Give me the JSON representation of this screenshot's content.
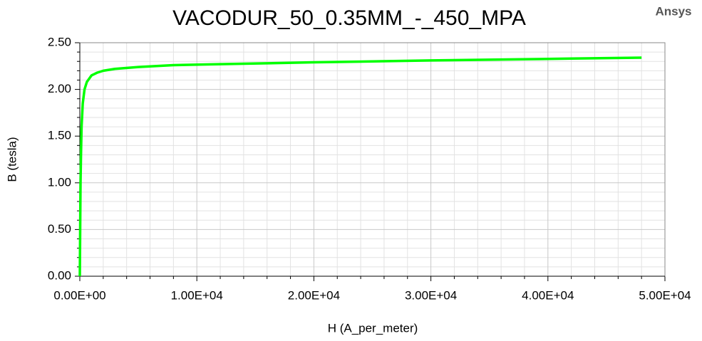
{
  "chart_data": {
    "type": "line",
    "title": "VACODUR_50_0.35MM_-_450_MPA",
    "brand": "Ansys",
    "x_label": "H (A_per_meter)",
    "y_label": "B (tesla)",
    "color": "#00ff00",
    "x": [
      0,
      30,
      60,
      100,
      150,
      250,
      400,
      600,
      1000,
      1500,
      2000,
      3000,
      5000,
      8000,
      12000,
      16000,
      20000,
      25000,
      30000,
      36000,
      42000,
      48000
    ],
    "values": [
      0,
      0.5,
      1.0,
      1.3,
      1.6,
      1.85,
      2.0,
      2.08,
      2.15,
      2.18,
      2.2,
      2.22,
      2.24,
      2.26,
      2.27,
      2.28,
      2.29,
      2.3,
      2.31,
      2.32,
      2.33,
      2.34
    ],
    "xlim": [
      0,
      50000
    ],
    "ylim": [
      0,
      2.5
    ],
    "xticks": [
      {
        "value": 0,
        "label": "0.00E+00"
      },
      {
        "value": 10000,
        "label": "1.00E+04"
      },
      {
        "value": 20000,
        "label": "2.00E+04"
      },
      {
        "value": 30000,
        "label": "3.00E+04"
      },
      {
        "value": 40000,
        "label": "4.00E+04"
      },
      {
        "value": 50000,
        "label": "5.00E+04"
      }
    ],
    "yticks": [
      {
        "value": 0,
        "label": "0.00"
      },
      {
        "value": 0.5,
        "label": "0.50"
      },
      {
        "value": 1,
        "label": "1.00"
      },
      {
        "value": 1.5,
        "label": "1.50"
      },
      {
        "value": 2,
        "label": "2.00"
      },
      {
        "value": 2.5,
        "label": "2.50"
      }
    ],
    "minor_xticks": [
      2000,
      4000,
      6000,
      8000,
      12000,
      14000,
      16000,
      18000,
      22000,
      24000,
      26000,
      28000,
      32000,
      34000,
      36000,
      38000,
      42000,
      44000,
      46000,
      48000
    ],
    "minor_yticks": [
      0.1,
      0.2,
      0.3,
      0.4,
      0.6,
      0.7,
      0.8,
      0.9,
      1.1,
      1.2,
      1.3,
      1.4,
      1.6,
      1.7,
      1.8,
      1.9,
      2.1,
      2.2,
      2.3,
      2.4
    ],
    "grid": true
  }
}
